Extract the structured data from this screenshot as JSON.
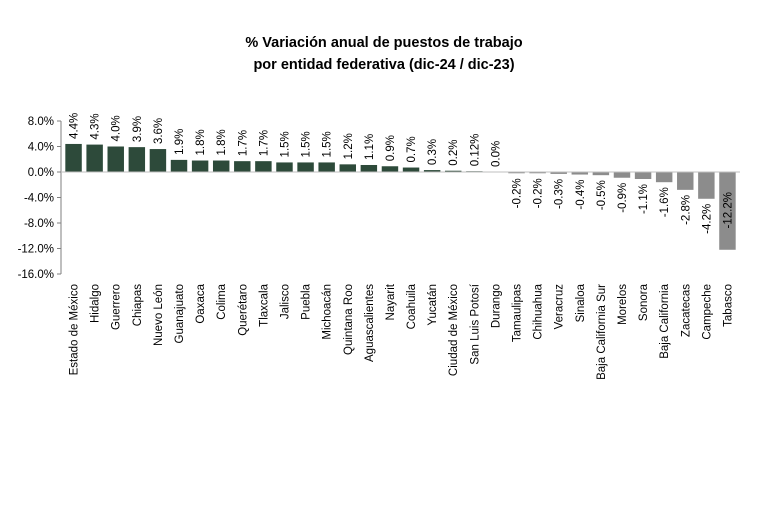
{
  "title_line1": "% Variación anual de puestos de trabajo",
  "title_line2": "por entidad federativa (dic-24 / dic-23)",
  "chart_data": {
    "type": "bar",
    "title": "% Variación anual de puestos de trabajo por entidad federativa (dic-24 / dic-23)",
    "xlabel": "",
    "ylabel": "",
    "ylim": [
      -16.0,
      8.0
    ],
    "yticks": [
      8.0,
      4.0,
      0.0,
      -4.0,
      -8.0,
      -12.0,
      -16.0
    ],
    "ytick_labels": [
      "8.0%",
      "4.0%",
      "0.0%",
      "-4.0%",
      "-8.0%",
      "-12.0%",
      "-16.0%"
    ],
    "grid": false,
    "legend": "none",
    "colors": {
      "positive": "#2d4a3a",
      "negative": "#8c8c8c"
    },
    "categories": [
      "Estado de México",
      "Hidalgo",
      "Guerrero",
      "Chiapas",
      "Nuevo León",
      "Guanajuato",
      "Oaxaca",
      "Colima",
      "Querétaro",
      "Tlaxcala",
      "Jalisco",
      "Puebla",
      "Michoacán",
      "Quintana Roo",
      "Aguascalientes",
      "Nayarit",
      "Coahuila",
      "Yucatán",
      "Ciudad de México",
      "San Luis Potosí",
      "Durango",
      "Tamaulipas",
      "Chihuahua",
      "Veracruz",
      "Sinaloa",
      "Baja California Sur",
      "Morelos",
      "Sonora",
      "Baja California",
      "Zacatecas",
      "Campeche",
      "Tabasco"
    ],
    "values": [
      4.4,
      4.3,
      4.0,
      3.9,
      3.6,
      1.9,
      1.8,
      1.8,
      1.7,
      1.7,
      1.5,
      1.5,
      1.5,
      1.2,
      1.1,
      0.9,
      0.7,
      0.3,
      0.2,
      0.12,
      0.0,
      -0.2,
      -0.2,
      -0.3,
      -0.4,
      -0.5,
      -0.9,
      -1.1,
      -1.6,
      -2.8,
      -4.2,
      -12.2
    ],
    "data_labels": [
      "4.4%",
      "4.3%",
      "4.0%",
      "3.9%",
      "3.6%",
      "1.9%",
      "1.8%",
      "1.8%",
      "1.7%",
      "1.7%",
      "1.5%",
      "1.5%",
      "1.5%",
      "1.2%",
      "1.1%",
      "0.9%",
      "0.7%",
      "0.3%",
      "0.2%",
      "0.12%",
      "0.0%",
      "-0.2%",
      "-0.2%",
      "-0.3%",
      "-0.4%",
      "-0.5%",
      "-0.9%",
      "-1.1%",
      "-1.6%",
      "-2.8%",
      "-4.2%",
      "-12.2%"
    ]
  }
}
